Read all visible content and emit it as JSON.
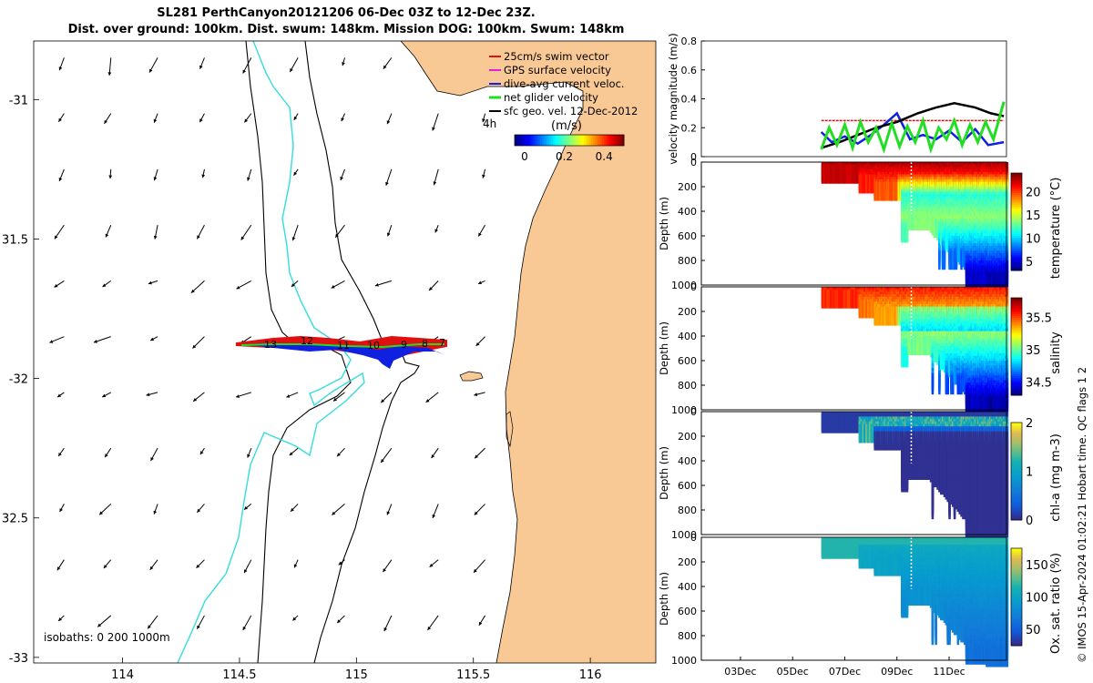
{
  "title_line1": "SL281 PerthCanyon20121206 06-Dec 03Z to 12-Dec 23Z.",
  "title_line2": "Dist. over ground: 100km. Dist. swum: 148km. Mission DOG: 100km. Swum: 148km",
  "credit": "© IMOS 15-Apr-2024 01:02:21 Hobart time. QC flags 1  2",
  "colors": {
    "land": "#f9c995",
    "isobath_0": "#000000",
    "isobath_1000": "#33dddd",
    "swim": "#e01010",
    "gps": "#e020e0",
    "diveavg": "#1020e0",
    "net": "#22dd22",
    "sfc": "#000000"
  },
  "chart_data": [
    {
      "type": "map",
      "name": "glider track map",
      "xlim": [
        113.62,
        116.28
      ],
      "ylim": [
        -33.02,
        -30.79
      ],
      "xticks": [
        114,
        114.5,
        115,
        115.5,
        116
      ],
      "xtick_labels": [
        "114",
        "114.5",
        "115",
        "115.5",
        "116"
      ],
      "yticks": [
        -31,
        -31.5,
        -32,
        -32.5,
        -33
      ],
      "ytick_labels": [
        "-31",
        "31.5",
        "-32",
        "32.5",
        "-33"
      ],
      "legend": [
        {
          "label": "25cm/s swim vector",
          "color": "#e01010"
        },
        {
          "label": "GPS surface velocity",
          "color": "#e020e0"
        },
        {
          "label": "dive-avg current veloc.",
          "color": "#1020e0"
        },
        {
          "label": "net glider velocity",
          "color": "#22dd22"
        },
        {
          "label": "sfc geo. vel. 12-Dec-2012",
          "color": "#000000"
        }
      ],
      "legend_placement": "top-right",
      "colorbar": {
        "label": "(m/s)",
        "scale_note": "4h",
        "ticks": [
          "0",
          "0.2",
          "0.4"
        ],
        "range": [
          -0.05,
          0.5
        ]
      },
      "isobaths_note": "isobaths: 0   200  1000m",
      "track_labels": [
        "13",
        "12",
        "11",
        "10",
        "9",
        "8",
        "7"
      ],
      "track_lon": [
        114.5,
        114.6,
        114.72,
        114.85,
        114.95,
        115.04,
        115.1,
        115.18,
        115.26,
        115.36
      ],
      "track_lat": [
        -31.89,
        -31.885,
        -31.88,
        -31.89,
        -31.9,
        -31.89,
        -31.92,
        -31.88,
        -31.885,
        -31.89
      ],
      "sfc_vector_sample": {
        "lon_step": 0.2,
        "lat_step": 0.2,
        "typical_speed_ms": 0.15,
        "direction": "mostly south / south-west"
      }
    },
    {
      "type": "line",
      "name": "velocity magnitude",
      "ylabel": "velocity magnitude (m/s)",
      "ylim": [
        0,
        0.8
      ],
      "yticks": [
        0,
        0.2,
        0.4,
        0.6,
        0.8
      ],
      "ytick_labels": [
        "0",
        "0.2",
        "0.4",
        "0.6",
        "0.8"
      ],
      "xlim": [
        1.5,
        13.2
      ],
      "x_unit": "day of Dec 2012",
      "series": [
        {
          "name": "swim speed",
          "color": "#e01010",
          "x": [
            6.1,
            7,
            8,
            9,
            10,
            11,
            12,
            13.1
          ],
          "values": [
            0.25,
            0.25,
            0.25,
            0.25,
            0.25,
            0.25,
            0.25,
            0.25
          ]
        },
        {
          "name": "dive-avg current",
          "color": "#1020e0",
          "x": [
            6.1,
            6.5,
            7,
            7.5,
            8,
            8.5,
            9,
            9.5,
            10,
            10.5,
            11,
            11.5,
            12,
            12.5,
            13.1
          ],
          "values": [
            0.17,
            0.1,
            0.14,
            0.09,
            0.15,
            0.22,
            0.3,
            0.12,
            0.15,
            0.12,
            0.18,
            0.1,
            0.19,
            0.08,
            0.1
          ]
        },
        {
          "name": "sfc geo. speed",
          "color": "#000000",
          "x": [
            6.1,
            6.8,
            7.5,
            8.2,
            9,
            9.8,
            10.5,
            11.2,
            12,
            12.6,
            13.1
          ],
          "values": [
            0.06,
            0.1,
            0.15,
            0.2,
            0.24,
            0.3,
            0.34,
            0.37,
            0.34,
            0.3,
            0.28
          ]
        },
        {
          "name": "net glider speed",
          "color": "#22dd22",
          "x": [
            6.1,
            6.4,
            6.7,
            7,
            7.3,
            7.6,
            7.9,
            8.2,
            8.5,
            8.8,
            9.1,
            9.4,
            9.7,
            10,
            10.3,
            10.6,
            10.9,
            11.2,
            11.5,
            11.8,
            12.1,
            12.4,
            12.7,
            13.1
          ],
          "values": [
            0.05,
            0.2,
            0.08,
            0.22,
            0.06,
            0.24,
            0.1,
            0.2,
            0.05,
            0.23,
            0.07,
            0.21,
            0.1,
            0.25,
            0.05,
            0.2,
            0.12,
            0.25,
            0.08,
            0.22,
            0.1,
            0.24,
            0.12,
            0.38
          ]
        }
      ]
    },
    {
      "type": "heatmap",
      "name": "temperature section",
      "ylabel": "Depth (m)",
      "colorbar_label": "temperature (°C)",
      "clim": [
        3,
        24
      ],
      "cticks": [
        5,
        10,
        15,
        20
      ],
      "ctick_labels": [
        "5",
        "10",
        "15",
        "20"
      ],
      "x_data_range_days": [
        6.1,
        13.2
      ],
      "depth_ticks": [
        0,
        200,
        400,
        600,
        800,
        1000
      ],
      "depth_tick_labels": [
        "0",
        "200",
        "400",
        "600",
        "800",
        "1000"
      ],
      "surface_value": 22,
      "deep_value": 4
    },
    {
      "type": "heatmap",
      "name": "salinity section",
      "ylabel": "Depth (m)",
      "colorbar_label": "salinity",
      "clim": [
        34.3,
        35.8
      ],
      "cticks": [
        34.5,
        35,
        35.5
      ],
      "ctick_labels": [
        "34.5",
        "35",
        "35.5"
      ],
      "x_data_range_days": [
        6.1,
        13.2
      ],
      "depth_ticks": [
        0,
        200,
        400,
        600,
        800,
        1000
      ],
      "depth_tick_labels": [
        "0",
        "200",
        "400",
        "600",
        "800",
        "1000"
      ],
      "surface_value": 35.6,
      "deep_value": 34.4
    },
    {
      "type": "heatmap",
      "name": "chlorophyll section",
      "ylabel": "Depth (m)",
      "colorbar_label": "chl-a (mg m-3)",
      "clim": [
        0,
        2
      ],
      "cticks": [
        0,
        1,
        2
      ],
      "ctick_labels": [
        "0",
        "1",
        "2"
      ],
      "x_data_range_days": [
        6.1,
        13.2
      ],
      "depth_ticks": [
        0,
        200,
        400,
        600,
        800,
        1000
      ],
      "depth_tick_labels": [
        "0",
        "200",
        "400",
        "600",
        "800",
        "1000"
      ],
      "surface_value": 0.6,
      "deep_value": 0.05
    },
    {
      "type": "heatmap",
      "name": "oxygen saturation section",
      "ylabel": "Depth (m)",
      "colorbar_label": "Ox. sat. ratio (%)",
      "clim": [
        25,
        175
      ],
      "cticks": [
        50,
        100,
        150
      ],
      "ctick_labels": [
        "50",
        "100",
        "150"
      ],
      "x_data_range_days": [
        6.1,
        13.2
      ],
      "depth_ticks": [
        0,
        200,
        400,
        600,
        800,
        1000
      ],
      "depth_tick_labels": [
        "0",
        "200",
        "400",
        "600",
        "800",
        "1000"
      ],
      "surface_value": 110,
      "deep_value": 60,
      "xticks": [
        3,
        5,
        7,
        9,
        11
      ],
      "xtick_labels": [
        "03Dec",
        "05Dec",
        "07Dec",
        "09Dec",
        "11Dec"
      ]
    }
  ]
}
